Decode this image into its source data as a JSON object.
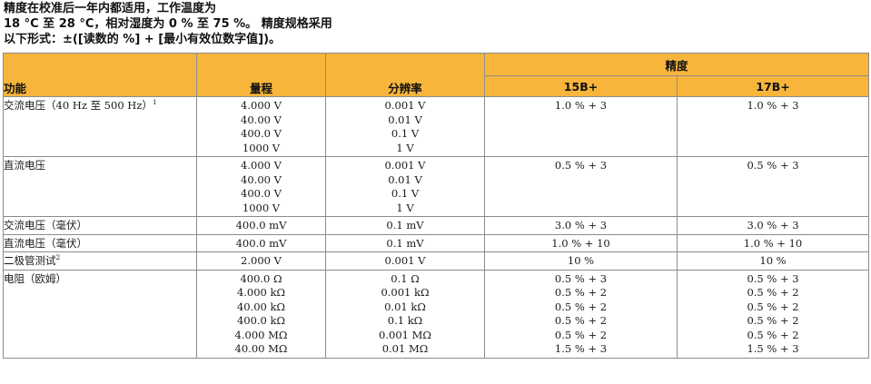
{
  "intro": {
    "line1": "精度在校准后一年内都适用，工作温度为",
    "line2": "18 °C 至 28 °C，相对湿度为 0 % 至 75 %。 精度规格采用",
    "line3": "以下形式：±([读数的 %] + [最小有效位数字值])。"
  },
  "header": {
    "function": "功能",
    "range": "量程",
    "resolution": "分辨率",
    "accuracy": "精度",
    "model_a": "15B+",
    "model_b": "17B+"
  },
  "colors": {
    "header_bg": "#f7b53b",
    "border": "#8c8c8c"
  },
  "rows": [
    {
      "function": "交流电压（40 Hz 至 500 Hz）",
      "note": "1",
      "range": [
        "4.000 V",
        "40.00 V",
        "400.0 V",
        "1000 V"
      ],
      "resolution": [
        "0.001 V",
        "0.01 V",
        "0.1 V",
        "1 V"
      ],
      "acc_a": [
        "1.0 % + 3"
      ],
      "acc_b": [
        "1.0 % + 3"
      ]
    },
    {
      "function": "直流电压",
      "note": "",
      "range": [
        "4.000 V",
        "40.00 V",
        "400.0 V",
        "1000 V"
      ],
      "resolution": [
        "0.001 V",
        "0.01 V",
        "0.1 V",
        "1 V"
      ],
      "acc_a": [
        "0.5 % + 3"
      ],
      "acc_b": [
        "0.5 % + 3"
      ]
    },
    {
      "function": "交流电压（毫伏）",
      "note": "",
      "range": [
        "400.0 mV"
      ],
      "resolution": [
        "0.1 mV"
      ],
      "acc_a": [
        "3.0 % + 3"
      ],
      "acc_b": [
        "3.0 % + 3"
      ]
    },
    {
      "function": "直流电压（毫伏）",
      "note": "",
      "range": [
        "400.0 mV"
      ],
      "resolution": [
        "0.1 mV"
      ],
      "acc_a": [
        "1.0 % + 10"
      ],
      "acc_b": [
        "1.0 % + 10"
      ]
    },
    {
      "function": "二极管测试",
      "note": "2",
      "range": [
        "2.000 V"
      ],
      "resolution": [
        "0.001 V"
      ],
      "acc_a": [
        "10 %"
      ],
      "acc_b": [
        "10 %"
      ]
    },
    {
      "function": "电阻（欧姆）",
      "note": "",
      "range": [
        "400.0 Ω",
        "4.000 kΩ",
        "40.00 kΩ",
        "400.0 kΩ",
        "4.000 MΩ",
        "40.00 MΩ"
      ],
      "resolution": [
        "0.1 Ω",
        "0.001 kΩ",
        "0.01 kΩ",
        "0.1 kΩ",
        "0.001 MΩ",
        "0.01 MΩ"
      ],
      "acc_a": [
        "0.5 % + 3",
        "0.5 % + 2",
        "0.5 % + 2",
        "0.5 % + 2",
        "0.5 % + 2",
        "1.5 % + 3"
      ],
      "acc_b": [
        "0.5 % + 3",
        "0.5 % + 2",
        "0.5 % + 2",
        "0.5 % + 2",
        "0.5 % + 2",
        "1.5 % + 3"
      ]
    }
  ]
}
